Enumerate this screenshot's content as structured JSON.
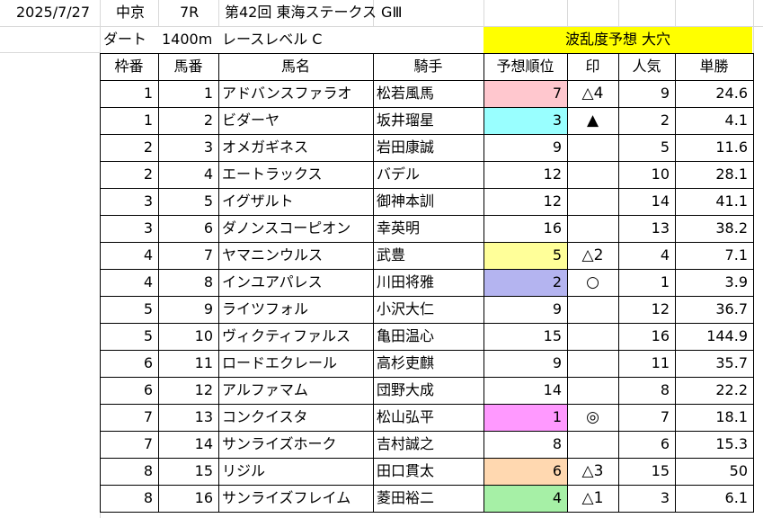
{
  "race": {
    "date": "2025/7/27",
    "course": "中京",
    "number": "7R",
    "title": "第42回 東海ステークス GⅢ",
    "surface": "ダート",
    "distance": "1400m",
    "level": "レースレベル C",
    "banner": "波乱度予想 大穴"
  },
  "colors": {
    "banner": "#ffff00",
    "pink": "#ffc7ce",
    "cyan": "#99ffff",
    "lightyellow": "#ffff99",
    "lavender": "#b4b4f0",
    "magenta": "#ff99ff",
    "peach": "#ffd8b0",
    "green": "#a6f0a6"
  },
  "headers": [
    "枠番",
    "馬番",
    "馬名",
    "騎手",
    "予想順位",
    "印",
    "人気",
    "単勝"
  ],
  "rows": [
    {
      "waku": "1",
      "uma": "1",
      "name": "アドバンスファラオ",
      "jockey": "松若風馬",
      "rank": "7",
      "rank_color": "pink",
      "mark": "△4",
      "pop": "9",
      "odds": "24.6"
    },
    {
      "waku": "1",
      "uma": "2",
      "name": "ビダーヤ",
      "jockey": "坂井瑠星",
      "rank": "3",
      "rank_color": "cyan",
      "mark": "▲",
      "pop": "2",
      "odds": "4.1"
    },
    {
      "waku": "2",
      "uma": "3",
      "name": "オメガギネス",
      "jockey": "岩田康誠",
      "rank": "9",
      "rank_color": "",
      "mark": "",
      "pop": "5",
      "odds": "11.6"
    },
    {
      "waku": "2",
      "uma": "4",
      "name": "エートラックス",
      "jockey": "バデル",
      "rank": "12",
      "rank_color": "",
      "mark": "",
      "pop": "10",
      "odds": "28.1"
    },
    {
      "waku": "3",
      "uma": "5",
      "name": "イグザルト",
      "jockey": "御神本訓",
      "rank": "12",
      "rank_color": "",
      "mark": "",
      "pop": "14",
      "odds": "41.1"
    },
    {
      "waku": "3",
      "uma": "6",
      "name": "ダノンスコーピオン",
      "jockey": "幸英明",
      "rank": "16",
      "rank_color": "",
      "mark": "",
      "pop": "13",
      "odds": "38.2"
    },
    {
      "waku": "4",
      "uma": "7",
      "name": "ヤマニンウルス",
      "jockey": "武豊",
      "rank": "5",
      "rank_color": "lightyellow",
      "mark": "△2",
      "pop": "4",
      "odds": "7.1"
    },
    {
      "waku": "4",
      "uma": "8",
      "name": "インユアパレス",
      "jockey": "川田将雅",
      "rank": "2",
      "rank_color": "lavender",
      "mark": "○",
      "pop": "1",
      "odds": "3.9"
    },
    {
      "waku": "5",
      "uma": "9",
      "name": "ライツフォル",
      "jockey": "小沢大仁",
      "rank": "9",
      "rank_color": "",
      "mark": "",
      "pop": "12",
      "odds": "36.7"
    },
    {
      "waku": "5",
      "uma": "10",
      "name": "ヴィクティファルス",
      "jockey": "亀田温心",
      "rank": "15",
      "rank_color": "",
      "mark": "",
      "pop": "16",
      "odds": "144.9"
    },
    {
      "waku": "6",
      "uma": "11",
      "name": "ロードエクレール",
      "jockey": "高杉吏麒",
      "rank": "9",
      "rank_color": "",
      "mark": "",
      "pop": "11",
      "odds": "35.7"
    },
    {
      "waku": "6",
      "uma": "12",
      "name": "アルファマム",
      "jockey": "団野大成",
      "rank": "14",
      "rank_color": "",
      "mark": "",
      "pop": "8",
      "odds": "22.2"
    },
    {
      "waku": "7",
      "uma": "13",
      "name": "コンクイスタ",
      "jockey": "松山弘平",
      "rank": "1",
      "rank_color": "magenta",
      "mark": "◎",
      "pop": "7",
      "odds": "18.1"
    },
    {
      "waku": "7",
      "uma": "14",
      "name": "サンライズホーク",
      "jockey": "吉村誠之",
      "rank": "8",
      "rank_color": "",
      "mark": "",
      "pop": "6",
      "odds": "15.3"
    },
    {
      "waku": "8",
      "uma": "15",
      "name": "リジル",
      "jockey": "田口貫太",
      "rank": "6",
      "rank_color": "peach",
      "mark": "△3",
      "pop": "15",
      "odds": "50"
    },
    {
      "waku": "8",
      "uma": "16",
      "name": "サンライズフレイム",
      "jockey": "菱田裕二",
      "rank": "4",
      "rank_color": "green",
      "mark": "△1",
      "pop": "3",
      "odds": "6.1"
    }
  ]
}
